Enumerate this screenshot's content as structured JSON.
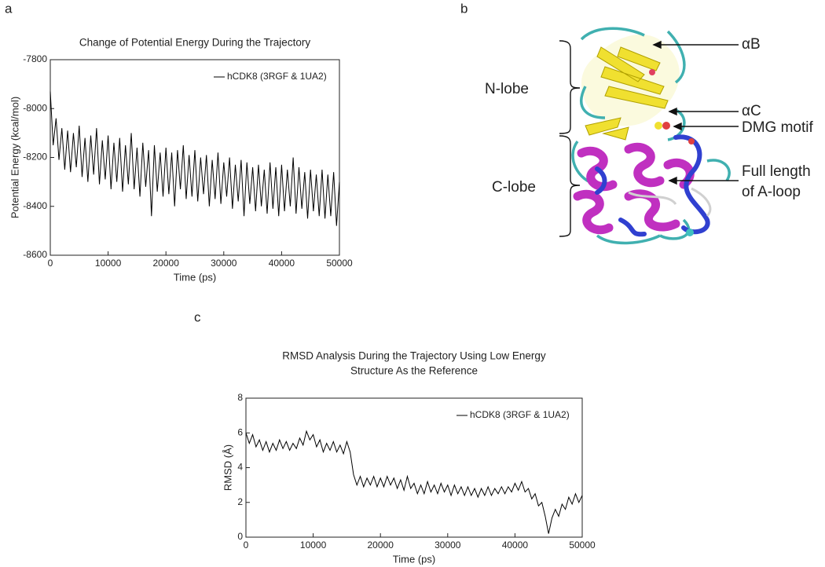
{
  "panel_labels": [
    "a",
    "b",
    "c"
  ],
  "structure_labels": [
    "αB",
    "αC",
    "DMG motif",
    "Full length",
    "of A-loop",
    "N-lobe",
    "C-lobe"
  ],
  "chart_data": [
    {
      "type": "line",
      "title": "Change of Potential Energy During the Trajectory",
      "x_label": "Time (ps)",
      "y_label": "Potential Energy (kcal/mol)",
      "xlim": [
        0,
        50000
      ],
      "xticks": [
        0,
        10000,
        20000,
        30000,
        40000,
        50000
      ],
      "ylim": [
        -8600,
        -7800
      ],
      "yticks": [
        -8600,
        -8400,
        -8200,
        -8000,
        -7800
      ],
      "legend": "upper right",
      "x": [
        0,
        500,
        1000,
        1500,
        2000,
        2500,
        3000,
        3500,
        4000,
        4500,
        5000,
        5500,
        6000,
        6500,
        7000,
        7500,
        8000,
        8500,
        9000,
        9500,
        10000,
        10500,
        11000,
        11500,
        12000,
        12500,
        13000,
        13500,
        14000,
        14500,
        15000,
        15500,
        16000,
        16500,
        17000,
        17500,
        18000,
        18500,
        19000,
        19500,
        20000,
        20500,
        21000,
        21500,
        22000,
        22500,
        23000,
        23500,
        24000,
        24500,
        25000,
        25500,
        26000,
        26500,
        27000,
        27500,
        28000,
        28500,
        29000,
        29500,
        30000,
        30500,
        31000,
        31500,
        32000,
        32500,
        33000,
        33500,
        34000,
        34500,
        35000,
        35500,
        36000,
        36500,
        37000,
        37500,
        38000,
        38500,
        39000,
        39500,
        40000,
        40500,
        41000,
        41500,
        42000,
        42500,
        43000,
        43500,
        44000,
        44500,
        45000,
        45500,
        46000,
        46500,
        47000,
        47500,
        48000,
        48500,
        49000,
        49500,
        50000
      ],
      "series": [
        {
          "name": "hCDK8 (3RGF & 1UA2)",
          "color": "#000000",
          "values": [
            -7930,
            -8150,
            -8040,
            -8210,
            -8080,
            -8250,
            -8090,
            -8260,
            -8100,
            -8240,
            -8070,
            -8280,
            -8120,
            -8300,
            -8110,
            -8270,
            -8080,
            -8310,
            -8130,
            -8290,
            -8110,
            -8330,
            -8140,
            -8300,
            -8120,
            -8340,
            -8150,
            -8310,
            -8100,
            -8330,
            -8160,
            -8360,
            -8140,
            -8320,
            -8170,
            -8440,
            -8150,
            -8340,
            -8180,
            -8360,
            -8160,
            -8350,
            -8180,
            -8400,
            -8170,
            -8330,
            -8150,
            -8370,
            -8190,
            -8360,
            -8170,
            -8380,
            -8200,
            -8350,
            -8190,
            -8400,
            -8210,
            -8370,
            -8180,
            -8390,
            -8220,
            -8360,
            -8200,
            -8410,
            -8230,
            -8380,
            -8210,
            -8440,
            -8220,
            -8390,
            -8240,
            -8420,
            -8230,
            -8400,
            -8250,
            -8430,
            -8220,
            -8410,
            -8240,
            -8440,
            -8230,
            -8420,
            -8250,
            -8400,
            -8200,
            -8430,
            -8240,
            -8410,
            -8260,
            -8450,
            -8250,
            -8420,
            -8270,
            -8440,
            -8250,
            -8450,
            -8270,
            -8440,
            -8260,
            -8480,
            -8300
          ]
        }
      ]
    },
    {
      "type": "line",
      "title": [
        "RMSD Analysis During the Trajectory Using Low Energy",
        "Structure As the Reference"
      ],
      "x_label": "Time (ps)",
      "y_label": "RMSD (Å)",
      "xlim": [
        0,
        50000
      ],
      "xticks": [
        0,
        10000,
        20000,
        30000,
        40000,
        50000
      ],
      "ylim": [
        0,
        8
      ],
      "yticks": [
        0,
        2,
        4,
        6,
        8
      ],
      "legend": "upper right",
      "x": [
        0,
        500,
        1000,
        1500,
        2000,
        2500,
        3000,
        3500,
        4000,
        4500,
        5000,
        5500,
        6000,
        6500,
        7000,
        7500,
        8000,
        8500,
        9000,
        9500,
        10000,
        10500,
        11000,
        11500,
        12000,
        12500,
        13000,
        13500,
        14000,
        14500,
        15000,
        15500,
        16000,
        16500,
        17000,
        17500,
        18000,
        18500,
        19000,
        19500,
        20000,
        20500,
        21000,
        21500,
        22000,
        22500,
        23000,
        23500,
        24000,
        24500,
        25000,
        25500,
        26000,
        26500,
        27000,
        27500,
        28000,
        28500,
        29000,
        29500,
        30000,
        30500,
        31000,
        31500,
        32000,
        32500,
        33000,
        33500,
        34000,
        34500,
        35000,
        35500,
        36000,
        36500,
        37000,
        37500,
        38000,
        38500,
        39000,
        39500,
        40000,
        40500,
        41000,
        41500,
        42000,
        42500,
        43000,
        43500,
        44000,
        44500,
        45000,
        45500,
        46000,
        46500,
        47000,
        47500,
        48000,
        48500,
        49000,
        49500,
        50000
      ],
      "series": [
        {
          "name": "hCDK8 (3RGF & 1UA2)",
          "color": "#000000",
          "values": [
            6.0,
            5.4,
            5.9,
            5.2,
            5.6,
            5.0,
            5.5,
            4.9,
            5.4,
            5.0,
            5.6,
            5.1,
            5.5,
            5.0,
            5.4,
            5.1,
            5.7,
            5.3,
            6.1,
            5.6,
            5.9,
            5.2,
            5.6,
            4.9,
            5.4,
            5.0,
            5.5,
            4.9,
            5.3,
            4.8,
            5.5,
            4.9,
            3.6,
            3.0,
            3.5,
            2.9,
            3.4,
            3.0,
            3.5,
            2.9,
            3.4,
            2.9,
            3.5,
            3.0,
            3.4,
            2.8,
            3.3,
            2.7,
            3.5,
            2.8,
            3.1,
            2.5,
            3.0,
            2.5,
            3.2,
            2.6,
            3.0,
            2.5,
            3.1,
            2.6,
            3.0,
            2.4,
            3.0,
            2.5,
            2.9,
            2.4,
            2.9,
            2.4,
            2.8,
            2.3,
            2.8,
            2.4,
            2.9,
            2.4,
            2.8,
            2.5,
            2.9,
            2.5,
            2.9,
            2.6,
            3.1,
            2.7,
            3.2,
            2.6,
            2.8,
            2.2,
            2.5,
            1.8,
            2.0,
            1.2,
            0.2,
            1.1,
            1.6,
            1.2,
            1.9,
            1.6,
            2.3,
            1.9,
            2.5,
            2.0,
            2.4
          ]
        }
      ]
    }
  ]
}
